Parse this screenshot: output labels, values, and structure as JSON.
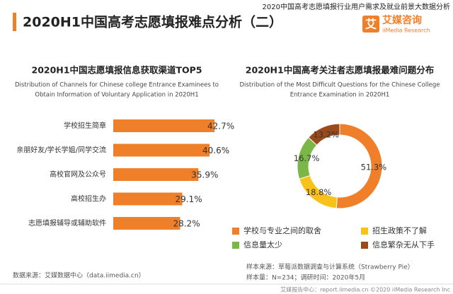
{
  "header": {
    "title": "2020H1中国高考志愿填报难点分析（二）",
    "report": "2020中国高考志愿填报行业用户需求及就业前景大数据分析",
    "logo_char": "艾",
    "brand": "艾媒咨询",
    "brand_en": "iiMedia Research"
  },
  "chart_data": [
    {
      "type": "bar",
      "title": "2020H1中国志愿填报信息获取渠道TOP5",
      "subtitle": [
        "Distribution of Channels for Chinese college Entrance Examinees to",
        "Obtain Information of Voluntary Application in 2020H1"
      ],
      "categories": [
        "学校招生简章",
        "亲朋好友/学长学姐/同学交流",
        "高校官网及公众号",
        "高校招生办",
        "志愿填报辅导或辅助软件"
      ],
      "values": [
        42.7,
        40.6,
        35.9,
        29.1,
        28.2
      ],
      "value_labels": [
        "42.7%",
        "40.6%",
        "35.9%",
        "29.1%",
        "28.2%"
      ],
      "color": "#f07f2a"
    },
    {
      "type": "pie",
      "title": "2020H1中国高考关注者志愿填报最难问题分布",
      "subtitle": [
        "Distribution of the Most Difficult Questions for the Chinese College",
        "Entrance Examination in 2020H1"
      ],
      "categories": [
        "学校与专业之间的取舍",
        "招生政策不了解",
        "信息量太少",
        "信息繁杂无从下手"
      ],
      "values": [
        51.3,
        18.8,
        16.7,
        13.2
      ],
      "value_labels": [
        "51.3%",
        "18.8%",
        "16.7%",
        "13.2%"
      ],
      "colors": [
        "#f07f2a",
        "#f9c21a",
        "#7ab648",
        "#9b4a1c"
      ],
      "donut": true
    }
  ],
  "footer": {
    "source": "数据来源：艾媒数据中心（data.iimedia.cn）",
    "sample_source": "样本来源：草莓派数据调查与计算系统（Strawberry Pie）",
    "sample_size": "样本量：N=234；调研时间：2020年5月",
    "bottom": "艾媒报告中心：report.iimedia.cn  ©2020  iiMedia Research  Inc"
  }
}
